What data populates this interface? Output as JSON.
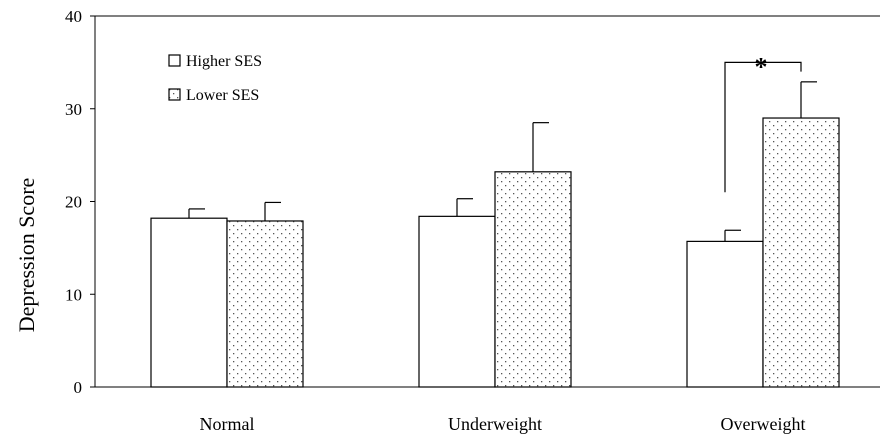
{
  "chart_data": {
    "type": "bar",
    "title": "",
    "xlabel": "",
    "ylabel": "Depression Score",
    "ylim": [
      0,
      40
    ],
    "yticks": [
      0,
      10,
      20,
      30,
      40
    ],
    "categories": [
      "Normal",
      "Underweight",
      "Overweight"
    ],
    "series": [
      {
        "name": "Higher SES",
        "pattern": "solid",
        "fill": "#ffffff",
        "values": [
          18.2,
          18.4,
          15.7
        ],
        "error_upper": [
          1.0,
          1.9,
          1.2
        ]
      },
      {
        "name": "Lower SES",
        "pattern": "dotted",
        "fill": "#ffffff",
        "values": [
          17.9,
          23.2,
          29.0
        ],
        "error_upper": [
          2.0,
          5.3,
          3.9
        ]
      }
    ],
    "legend": {
      "position": "top-left"
    },
    "grid": false,
    "annotations": [
      {
        "text": "*",
        "type": "significance-bracket",
        "category": "Overweight"
      }
    ]
  }
}
